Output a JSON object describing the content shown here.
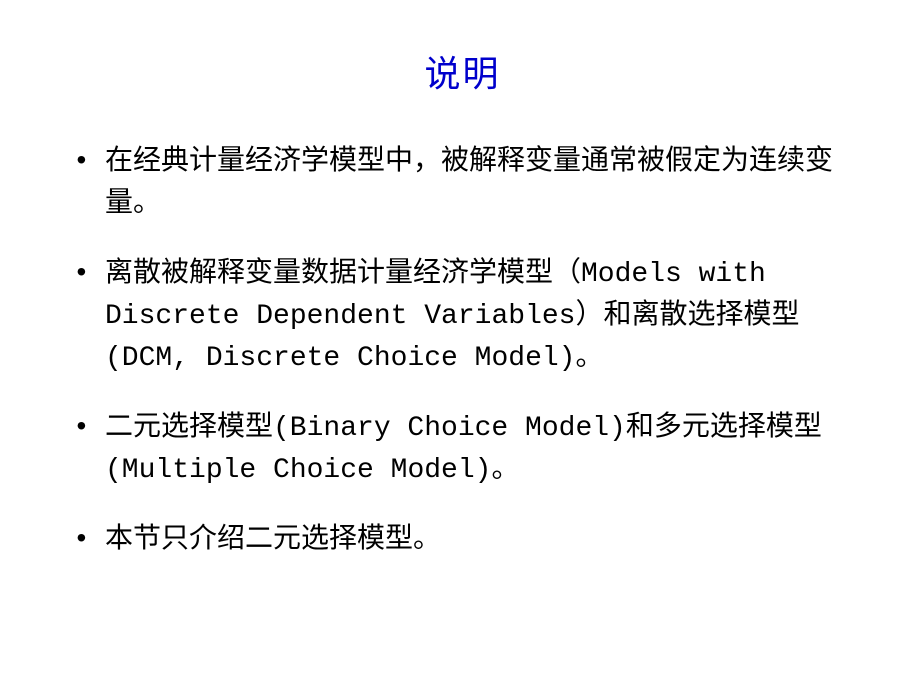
{
  "slide": {
    "title": "说明",
    "title_color": "#0000cc",
    "body_color": "#000000",
    "background_color": "#ffffff",
    "title_fontsize": 36,
    "body_fontsize": 28,
    "bullets": [
      "在经典计量经济学模型中，被解释变量通常被假定为连续变量。",
      "离散被解释变量数据计量经济学模型（Models with Discrete Dependent Variables）和离散选择模型(DCM, Discrete Choice Model)。",
      "二元选择模型(Binary Choice Model)和多元选择模型(Multiple Choice Model)。",
      "本节只介绍二元选择模型。"
    ]
  }
}
